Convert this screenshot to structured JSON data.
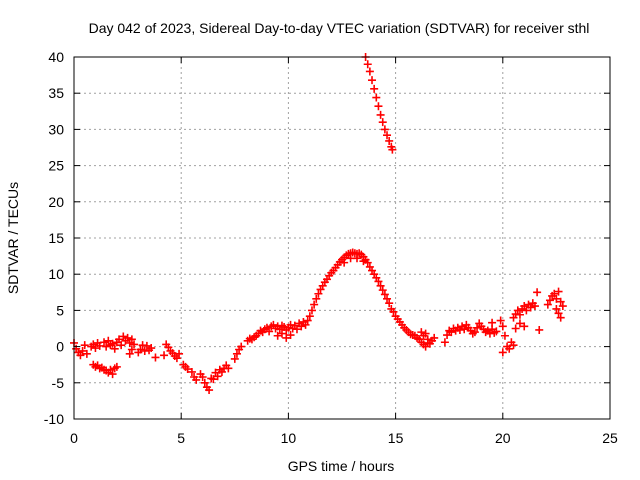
{
  "chart_data": {
    "type": "scatter",
    "title": "Day 042 of 2023, Sidereal Day-to-day VTEC variation (SDTVAR) for receiver sthl",
    "xlabel": "GPS time / hours",
    "ylabel": "SDTVAR / TECUs",
    "xlim": [
      0,
      25
    ],
    "ylim": [
      -10,
      40
    ],
    "xticks": [
      0,
      5,
      10,
      15,
      20,
      25
    ],
    "yticks": [
      -10,
      -5,
      0,
      5,
      10,
      15,
      20,
      25,
      30,
      35,
      40
    ],
    "xtick_labels": [
      "0",
      "5",
      "10",
      "15",
      "20",
      "25"
    ],
    "ytick_labels": [
      "-10",
      "-5",
      "0",
      "5",
      "10",
      "15",
      "20",
      "25",
      "30",
      "35",
      "40"
    ],
    "grid": true,
    "marker": "plus",
    "series": [
      {
        "name": "sthl",
        "color": "#ff0000",
        "points": [
          [
            0.0,
            0.5
          ],
          [
            0.1,
            -0.3
          ],
          [
            0.2,
            -0.8
          ],
          [
            0.3,
            -1.2
          ],
          [
            0.4,
            -0.6
          ],
          [
            0.5,
            0.2
          ],
          [
            0.6,
            -1.0
          ],
          [
            0.8,
            0.0
          ],
          [
            0.9,
            0.3
          ],
          [
            1.0,
            -0.2
          ],
          [
            1.1,
            0.5
          ],
          [
            1.2,
            0.1
          ],
          [
            1.4,
            0.6
          ],
          [
            1.5,
            0.0
          ],
          [
            1.6,
            0.8
          ],
          [
            1.7,
            0.2
          ],
          [
            1.8,
            0.4
          ],
          [
            1.9,
            -0.3
          ],
          [
            0.9,
            -2.5
          ],
          [
            1.0,
            -2.8
          ],
          [
            1.1,
            -2.6
          ],
          [
            1.2,
            -3.0
          ],
          [
            1.3,
            -2.9
          ],
          [
            1.4,
            -3.2
          ],
          [
            1.5,
            -3.3
          ],
          [
            1.6,
            -3.6
          ],
          [
            1.7,
            -3.2
          ],
          [
            1.8,
            -3.8
          ],
          [
            1.9,
            -3.0
          ],
          [
            2.0,
            -2.8
          ],
          [
            2.0,
            0.6
          ],
          [
            2.1,
            1.0
          ],
          [
            2.2,
            0.2
          ],
          [
            2.3,
            1.4
          ],
          [
            2.4,
            0.8
          ],
          [
            2.5,
            1.2
          ],
          [
            2.6,
            0.5
          ],
          [
            2.7,
            1.0
          ],
          [
            2.6,
            -1.0
          ],
          [
            2.7,
            -0.4
          ],
          [
            2.8,
            0.3
          ],
          [
            3.0,
            -0.8
          ],
          [
            3.1,
            -0.4
          ],
          [
            3.2,
            0.2
          ],
          [
            3.3,
            -0.6
          ],
          [
            3.4,
            0.1
          ],
          [
            3.5,
            -0.5
          ],
          [
            3.6,
            -0.2
          ],
          [
            3.8,
            -1.5
          ],
          [
            4.2,
            -1.2
          ],
          [
            4.3,
            0.3
          ],
          [
            4.4,
            -0.1
          ],
          [
            4.5,
            -0.6
          ],
          [
            4.6,
            -0.9
          ],
          [
            4.7,
            -1.3
          ],
          [
            4.8,
            -1.6
          ],
          [
            4.9,
            -1.0
          ],
          [
            5.1,
            -2.5
          ],
          [
            5.2,
            -2.8
          ],
          [
            5.3,
            -3.1
          ],
          [
            5.5,
            -3.5
          ],
          [
            5.6,
            -4.2
          ],
          [
            5.7,
            -4.6
          ],
          [
            5.9,
            -3.8
          ],
          [
            6.0,
            -4.2
          ],
          [
            6.1,
            -5.0
          ],
          [
            6.2,
            -5.6
          ],
          [
            6.3,
            -6.0
          ],
          [
            6.4,
            -4.4
          ],
          [
            6.5,
            -4.5
          ],
          [
            6.6,
            -3.6
          ],
          [
            6.7,
            -4.1
          ],
          [
            6.8,
            -3.2
          ],
          [
            6.9,
            -3.5
          ],
          [
            7.0,
            -3.0
          ],
          [
            7.1,
            -2.6
          ],
          [
            7.2,
            -3.0
          ],
          [
            7.5,
            -1.7
          ],
          [
            7.6,
            -1.0
          ],
          [
            7.7,
            -0.4
          ],
          [
            7.8,
            0.0
          ],
          [
            8.1,
            0.8
          ],
          [
            8.2,
            1.1
          ],
          [
            8.3,
            1.0
          ],
          [
            8.4,
            1.3
          ],
          [
            8.5,
            1.5
          ],
          [
            8.6,
            1.8
          ],
          [
            8.7,
            2.2
          ],
          [
            8.8,
            2.0
          ],
          [
            8.9,
            2.4
          ],
          [
            9.0,
            2.6
          ],
          [
            9.1,
            2.1
          ],
          [
            9.2,
            2.8
          ],
          [
            9.3,
            3.0
          ],
          [
            9.4,
            2.5
          ],
          [
            9.5,
            2.8
          ],
          [
            9.6,
            2.4
          ],
          [
            9.7,
            2.9
          ],
          [
            9.8,
            2.7
          ],
          [
            9.9,
            2.3
          ],
          [
            10.0,
            2.6
          ],
          [
            10.1,
            3.0
          ],
          [
            10.2,
            2.5
          ],
          [
            10.3,
            2.9
          ],
          [
            10.4,
            2.4
          ],
          [
            9.5,
            1.5
          ],
          [
            9.7,
            1.8
          ],
          [
            9.9,
            1.2
          ],
          [
            10.1,
            1.6
          ],
          [
            10.5,
            3.2
          ],
          [
            10.6,
            2.8
          ],
          [
            10.7,
            3.4
          ],
          [
            10.8,
            3.0
          ],
          [
            10.9,
            3.6
          ],
          [
            11.0,
            4.2
          ],
          [
            11.1,
            5.0
          ],
          [
            11.2,
            5.8
          ],
          [
            11.3,
            6.6
          ],
          [
            11.4,
            7.3
          ],
          [
            11.5,
            7.9
          ],
          [
            11.6,
            8.4
          ],
          [
            11.7,
            8.9
          ],
          [
            11.8,
            9.3
          ],
          [
            11.9,
            9.8
          ],
          [
            12.0,
            10.2
          ],
          [
            12.1,
            10.5
          ],
          [
            12.2,
            10.9
          ],
          [
            12.3,
            11.3
          ],
          [
            12.4,
            11.7
          ],
          [
            12.5,
            12.0
          ],
          [
            12.6,
            12.3
          ],
          [
            12.7,
            12.6
          ],
          [
            12.8,
            12.8
          ],
          [
            12.9,
            12.9
          ],
          [
            13.0,
            13.0
          ],
          [
            13.1,
            12.9
          ],
          [
            13.2,
            12.8
          ],
          [
            13.3,
            12.9
          ],
          [
            13.4,
            12.7
          ],
          [
            13.5,
            12.4
          ],
          [
            13.6,
            12.0
          ],
          [
            13.7,
            11.6
          ],
          [
            13.8,
            11.0
          ],
          [
            13.9,
            10.5
          ],
          [
            14.0,
            10.0
          ],
          [
            14.1,
            9.5
          ],
          [
            14.2,
            9.0
          ],
          [
            14.3,
            8.4
          ],
          [
            14.4,
            7.8
          ],
          [
            14.5,
            7.2
          ],
          [
            12.6,
            11.6
          ],
          [
            12.9,
            12.2
          ],
          [
            13.2,
            12.2
          ],
          [
            13.5,
            11.8
          ],
          [
            14.6,
            6.6
          ],
          [
            14.7,
            6.0
          ],
          [
            14.8,
            5.2
          ],
          [
            14.9,
            4.8
          ],
          [
            15.0,
            4.2
          ],
          [
            15.1,
            3.8
          ],
          [
            15.2,
            3.4
          ],
          [
            15.3,
            3.0
          ],
          [
            15.4,
            2.6
          ],
          [
            15.5,
            2.3
          ],
          [
            15.6,
            2.0
          ],
          [
            15.7,
            1.7
          ],
          [
            15.8,
            1.6
          ],
          [
            15.9,
            1.5
          ],
          [
            16.0,
            1.2
          ],
          [
            16.1,
            1.0
          ],
          [
            16.2,
            0.6
          ],
          [
            16.3,
            0.3
          ],
          [
            16.4,
            0.0
          ],
          [
            16.5,
            0.5
          ],
          [
            16.2,
            2.0
          ],
          [
            16.3,
            1.5
          ],
          [
            16.4,
            1.8
          ],
          [
            16.5,
            1.0
          ],
          [
            16.6,
            0.4
          ],
          [
            16.7,
            0.8
          ],
          [
            16.8,
            1.2
          ],
          [
            17.3,
            0.6
          ],
          [
            17.4,
            1.6
          ],
          [
            17.5,
            2.2
          ],
          [
            17.6,
            2.0
          ],
          [
            17.7,
            2.5
          ],
          [
            17.8,
            2.2
          ],
          [
            17.9,
            2.6
          ],
          [
            18.0,
            2.3
          ],
          [
            18.1,
            2.8
          ],
          [
            18.2,
            2.4
          ],
          [
            18.3,
            3.0
          ],
          [
            18.4,
            2.6
          ],
          [
            18.5,
            2.2
          ],
          [
            18.6,
            1.8
          ],
          [
            18.7,
            2.0
          ],
          [
            18.8,
            2.6
          ],
          [
            18.9,
            3.2
          ],
          [
            19.0,
            2.8
          ],
          [
            19.1,
            2.4
          ],
          [
            19.2,
            2.0
          ],
          [
            19.3,
            2.2
          ],
          [
            19.4,
            1.8
          ],
          [
            19.5,
            2.4
          ],
          [
            19.6,
            1.9
          ],
          [
            19.7,
            2.1
          ],
          [
            19.5,
            3.3
          ],
          [
            19.9,
            3.6
          ],
          [
            20.0,
            2.8
          ],
          [
            20.1,
            1.5
          ],
          [
            20.2,
            0.0
          ],
          [
            20.0,
            -0.8
          ],
          [
            20.3,
            -0.3
          ],
          [
            20.4,
            0.6
          ],
          [
            20.5,
            0.2
          ],
          [
            20.5,
            4.0
          ],
          [
            20.6,
            4.5
          ],
          [
            20.7,
            5.0
          ],
          [
            20.8,
            4.4
          ],
          [
            20.9,
            5.2
          ],
          [
            21.0,
            5.6
          ],
          [
            21.1,
            5.0
          ],
          [
            21.2,
            5.8
          ],
          [
            21.3,
            5.4
          ],
          [
            21.4,
            6.0
          ],
          [
            21.5,
            5.6
          ],
          [
            20.6,
            2.5
          ],
          [
            20.8,
            3.2
          ],
          [
            21.0,
            2.8
          ],
          [
            21.6,
            7.5
          ],
          [
            21.7,
            2.3
          ],
          [
            22.1,
            5.8
          ],
          [
            22.2,
            6.4
          ],
          [
            22.3,
            7.0
          ],
          [
            22.4,
            7.3
          ],
          [
            22.5,
            6.6
          ],
          [
            22.6,
            7.6
          ],
          [
            22.7,
            6.2
          ],
          [
            22.8,
            5.6
          ],
          [
            22.5,
            5.2
          ],
          [
            22.6,
            4.6
          ],
          [
            22.7,
            4.0
          ],
          [
            13.6,
            40.0
          ],
          [
            13.7,
            39.0
          ],
          [
            13.8,
            38.0
          ],
          [
            13.9,
            36.8
          ],
          [
            14.0,
            35.6
          ],
          [
            14.1,
            34.4
          ],
          [
            14.2,
            33.2
          ],
          [
            14.3,
            32.0
          ],
          [
            14.4,
            31.0
          ],
          [
            14.5,
            30.0
          ],
          [
            14.6,
            29.2
          ],
          [
            14.7,
            28.4
          ],
          [
            14.8,
            27.6
          ],
          [
            14.85,
            27.2
          ]
        ]
      }
    ]
  }
}
